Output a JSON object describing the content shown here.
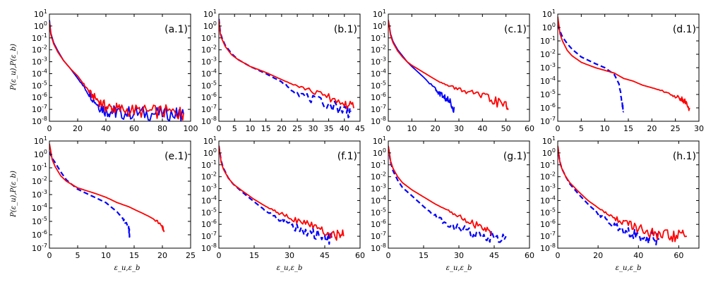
{
  "figure": {
    "ylabel_row_1": "P(ε_u),P(ε_b)",
    "ylabel_row_2": "P(ε_u),P(ε_b)",
    "xlabel": "ε_u,ε_b",
    "colors": {
      "blue": "#0000ff",
      "red": "#ff0000"
    }
  },
  "chart_data": [
    {
      "type": "line",
      "panel": "(a.1)",
      "yscale": "log",
      "ylim_exp": [
        -8,
        1
      ],
      "xlim": [
        0,
        100
      ],
      "xticks": [
        0,
        20,
        40,
        60,
        80,
        100
      ],
      "series": [
        {
          "name": "P(ε_u)",
          "color": "#0000ff",
          "style": "solid",
          "x": [
            0,
            1,
            3,
            6,
            10,
            15,
            20,
            25,
            30,
            35,
            40,
            45,
            50,
            60,
            70,
            80,
            90,
            95
          ],
          "log10y": [
            0.5,
            -0.6,
            -1.4,
            -2.1,
            -2.9,
            -3.6,
            -4.4,
            -5.2,
            -6.0,
            -6.7,
            -7.1,
            -7.2,
            -7.3,
            -7.3,
            -7.35,
            -7.35,
            -7.4,
            -7.4
          ]
        },
        {
          "name": "P(ε_b)",
          "color": "#ff0000",
          "style": "solid",
          "x": [
            0,
            1,
            3,
            6,
            10,
            15,
            20,
            25,
            30,
            35,
            40,
            45,
            50,
            60,
            70,
            80,
            90,
            95
          ],
          "log10y": [
            0.3,
            -0.7,
            -1.5,
            -2.2,
            -2.9,
            -3.6,
            -4.2,
            -5.0,
            -5.8,
            -6.3,
            -6.8,
            -6.9,
            -7.0,
            -7.1,
            -7.2,
            -7.2,
            -7.3,
            -7.3
          ]
        }
      ]
    },
    {
      "type": "line",
      "panel": "(b.1)",
      "yscale": "log",
      "ylim_exp": [
        -8,
        1
      ],
      "xlim": [
        0,
        45
      ],
      "xticks": [
        0,
        5,
        10,
        15,
        20,
        25,
        30,
        35,
        40,
        45
      ],
      "series": [
        {
          "name": "P(ε_u)",
          "color": "#0000ff",
          "style": "dashed",
          "x": [
            0,
            0.5,
            1,
            2,
            4,
            6,
            8,
            10,
            15,
            20,
            25,
            30,
            35,
            40,
            42
          ],
          "log10y": [
            0.6,
            -0.6,
            -1.0,
            -1.6,
            -2.3,
            -2.8,
            -3.1,
            -3.4,
            -4.0,
            -4.7,
            -5.6,
            -6.2,
            -6.6,
            -7.0,
            -7.2
          ]
        },
        {
          "name": "P(ε_b)",
          "color": "#ff0000",
          "style": "solid",
          "x": [
            0,
            0.5,
            1,
            2,
            4,
            6,
            8,
            10,
            15,
            20,
            25,
            30,
            35,
            40,
            43
          ],
          "log10y": [
            0.5,
            -0.7,
            -1.1,
            -1.7,
            -2.4,
            -2.8,
            -3.1,
            -3.4,
            -3.9,
            -4.5,
            -5.0,
            -5.5,
            -6.0,
            -6.5,
            -6.9
          ]
        }
      ]
    },
    {
      "type": "line",
      "panel": "(c.1)",
      "yscale": "log",
      "ylim_exp": [
        -8,
        1
      ],
      "xlim": [
        0,
        60
      ],
      "xticks": [
        0,
        10,
        20,
        30,
        40,
        50,
        60
      ],
      "series": [
        {
          "name": "P(ε_u)",
          "color": "#0000ff",
          "style": "solid",
          "x": [
            0,
            1,
            2,
            4,
            6,
            8,
            10,
            15,
            20,
            22,
            24,
            26,
            28
          ],
          "log10y": [
            0.5,
            -0.7,
            -1.3,
            -2.0,
            -2.5,
            -3.0,
            -3.4,
            -4.3,
            -5.3,
            -5.7,
            -6.0,
            -6.4,
            -6.8
          ]
        },
        {
          "name": "P(ε_b)",
          "color": "#ff0000",
          "style": "solid",
          "x": [
            0,
            1,
            2,
            4,
            6,
            8,
            10,
            15,
            20,
            25,
            30,
            35,
            40,
            45,
            50,
            51
          ],
          "log10y": [
            0.5,
            -0.8,
            -1.4,
            -2.1,
            -2.6,
            -3.0,
            -3.3,
            -3.9,
            -4.5,
            -5.0,
            -5.3,
            -5.6,
            -5.9,
            -6.3,
            -6.7,
            -7.0
          ]
        }
      ]
    },
    {
      "type": "line",
      "panel": "(d.1)",
      "yscale": "log",
      "ylim_exp": [
        -7,
        1
      ],
      "xlim": [
        0,
        30
      ],
      "xticks": [
        0,
        5,
        10,
        15,
        20,
        25,
        30
      ],
      "series": [
        {
          "name": "P(ε_u)",
          "color": "#0000ff",
          "style": "dashed",
          "x": [
            0,
            0.5,
            1,
            2,
            3,
            5,
            8,
            10,
            12,
            13,
            13.5,
            14
          ],
          "log10y": [
            0.2,
            -0.3,
            -0.7,
            -1.2,
            -1.6,
            -2.2,
            -2.7,
            -3.0,
            -3.5,
            -4.2,
            -5.2,
            -6.3
          ]
        },
        {
          "name": "P(ε_b)",
          "color": "#ff0000",
          "style": "solid",
          "x": [
            0,
            0.5,
            1,
            2,
            3,
            5,
            8,
            10,
            12,
            14,
            16,
            18,
            20,
            22,
            24,
            26,
            27,
            28
          ],
          "log10y": [
            0.8,
            -0.5,
            -1.0,
            -1.7,
            -2.1,
            -2.6,
            -3.0,
            -3.2,
            -3.4,
            -3.8,
            -4.0,
            -4.3,
            -4.5,
            -4.7,
            -5.0,
            -5.3,
            -5.5,
            -6.0
          ]
        }
      ]
    },
    {
      "type": "line",
      "panel": "(e.1)",
      "yscale": "log",
      "ylim_exp": [
        -7,
        1
      ],
      "xlim": [
        0,
        25
      ],
      "xticks": [
        0,
        5,
        10,
        15,
        20,
        25
      ],
      "series": [
        {
          "name": "P(ε_u)",
          "color": "#0000ff",
          "style": "dashed",
          "x": [
            0,
            0.5,
            1,
            2,
            3,
            5,
            8,
            10,
            12,
            13,
            14,
            14.2
          ],
          "log10y": [
            0.2,
            -0.3,
            -0.6,
            -1.3,
            -1.9,
            -2.6,
            -3.2,
            -3.6,
            -4.3,
            -4.8,
            -5.4,
            -6.0
          ]
        },
        {
          "name": "P(ε_b)",
          "color": "#ff0000",
          "style": "solid",
          "x": [
            0,
            0.5,
            1,
            2,
            3,
            5,
            8,
            10,
            12,
            14,
            16,
            18,
            19,
            20,
            20.3
          ],
          "log10y": [
            0.8,
            -0.4,
            -0.9,
            -1.6,
            -2.0,
            -2.5,
            -2.9,
            -3.2,
            -3.6,
            -3.9,
            -4.3,
            -4.7,
            -5.0,
            -5.4,
            -5.8
          ]
        }
      ]
    },
    {
      "type": "line",
      "panel": "(f.1)",
      "yscale": "log",
      "ylim_exp": [
        -8,
        1
      ],
      "xlim": [
        0,
        60
      ],
      "xticks": [
        0,
        15,
        30,
        45,
        60
      ],
      "series": [
        {
          "name": "P(ε_u)",
          "color": "#0000ff",
          "style": "dashed",
          "x": [
            0,
            1,
            2,
            4,
            6,
            10,
            15,
            20,
            25,
            30,
            35,
            40,
            45,
            48
          ],
          "log10y": [
            0.6,
            -0.7,
            -1.3,
            -2.1,
            -2.6,
            -3.3,
            -4.1,
            -4.9,
            -5.5,
            -6.0,
            -6.4,
            -6.8,
            -7.1,
            -7.3
          ]
        },
        {
          "name": "P(ε_b)",
          "color": "#ff0000",
          "style": "solid",
          "x": [
            0,
            1,
            2,
            4,
            6,
            10,
            15,
            20,
            25,
            30,
            35,
            40,
            45,
            50,
            53
          ],
          "log10y": [
            0.6,
            -0.8,
            -1.4,
            -2.1,
            -2.6,
            -3.2,
            -3.9,
            -4.5,
            -5.0,
            -5.4,
            -5.8,
            -6.2,
            -6.6,
            -6.9,
            -7.0
          ]
        }
      ]
    },
    {
      "type": "line",
      "panel": "(g.1)",
      "yscale": "log",
      "ylim_exp": [
        -8,
        1
      ],
      "xlim": [
        0,
        60
      ],
      "xticks": [
        0,
        15,
        30,
        45,
        60
      ],
      "series": [
        {
          "name": "P(ε_u)",
          "color": "#0000ff",
          "style": "dashed",
          "x": [
            0,
            1,
            2,
            4,
            6,
            10,
            15,
            20,
            25,
            30,
            35,
            40,
            45,
            50
          ],
          "log10y": [
            0.5,
            -0.8,
            -1.5,
            -2.3,
            -2.9,
            -3.6,
            -4.5,
            -5.3,
            -5.9,
            -6.4,
            -6.7,
            -7.0,
            -7.0,
            -7.0
          ]
        },
        {
          "name": "P(ε_b)",
          "color": "#ff0000",
          "style": "solid",
          "x": [
            0,
            1,
            2,
            4,
            6,
            10,
            15,
            20,
            25,
            30,
            35,
            40,
            44
          ],
          "log10y": [
            0.6,
            -0.7,
            -1.3,
            -2.0,
            -2.5,
            -3.1,
            -3.7,
            -4.3,
            -4.8,
            -5.3,
            -5.8,
            -6.4,
            -6.9
          ]
        }
      ]
    },
    {
      "type": "line",
      "panel": "(h.1)",
      "yscale": "log",
      "ylim_exp": [
        -8,
        1
      ],
      "xlim": [
        0,
        70
      ],
      "xticks": [
        0,
        20,
        40,
        60
      ],
      "series": [
        {
          "name": "P(ε_u)",
          "color": "#0000ff",
          "style": "dashed",
          "x": [
            0,
            1,
            2,
            4,
            6,
            10,
            15,
            20,
            25,
            30,
            35,
            40,
            45,
            50
          ],
          "log10y": [
            0.5,
            -0.7,
            -1.3,
            -2.0,
            -2.6,
            -3.4,
            -4.3,
            -5.1,
            -5.7,
            -6.2,
            -6.6,
            -6.9,
            -7.1,
            -7.3
          ]
        },
        {
          "name": "P(ε_b)",
          "color": "#ff0000",
          "style": "solid",
          "x": [
            0,
            1,
            2,
            4,
            6,
            10,
            15,
            20,
            25,
            30,
            35,
            40,
            45,
            50,
            55,
            60,
            64
          ],
          "log10y": [
            0.6,
            -0.7,
            -1.3,
            -2.0,
            -2.5,
            -3.2,
            -4.0,
            -4.6,
            -5.2,
            -5.6,
            -6.0,
            -6.4,
            -6.7,
            -7.0,
            -7.0,
            -7.0,
            -7.0
          ]
        }
      ]
    }
  ]
}
